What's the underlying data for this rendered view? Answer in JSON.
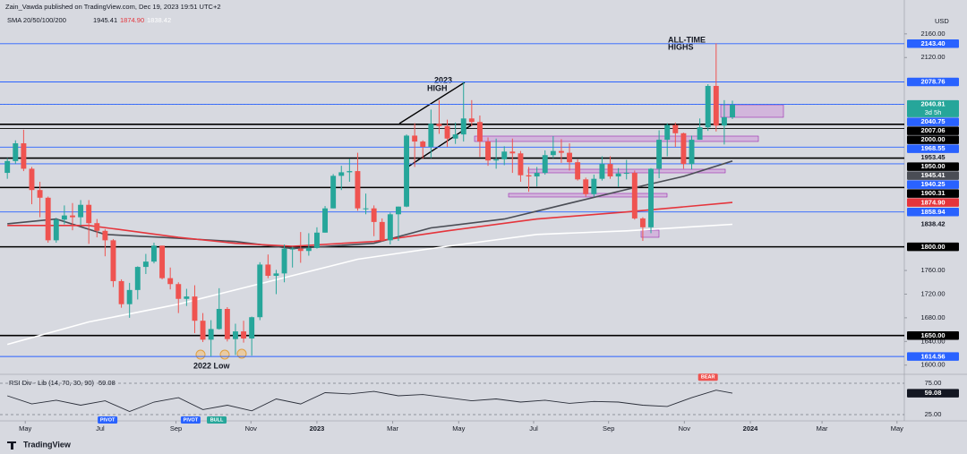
{
  "header": {
    "publisher": "Zain_Vawda published on TradingView.com, Dec 19, 2023 19:51 UTC+2",
    "legend": "SMA 20/50/100/200",
    "sma_values": [
      "1945.41",
      "1874.90",
      "1838.42"
    ],
    "currency": "USD",
    "brand": "TradingView"
  },
  "annotations": {
    "ath": [
      "ALL-TIME",
      "HIGHS"
    ],
    "high2023": [
      "2023",
      "HIGH"
    ],
    "low2022": "2022 Low"
  },
  "chart_data": {
    "type": "candlestick",
    "ohlc": [
      [
        1925,
        1950,
        1915,
        1945
      ],
      [
        1945,
        1980,
        1940,
        1975
      ],
      [
        1975,
        1998,
        1928,
        1932
      ],
      [
        1932,
        1935,
        1872,
        1896
      ],
      [
        1896,
        1910,
        1850,
        1883
      ],
      [
        1883,
        1885,
        1807,
        1811
      ],
      [
        1811,
        1849,
        1807,
        1846
      ],
      [
        1846,
        1870,
        1838,
        1853
      ],
      [
        1853,
        1874,
        1828,
        1850
      ],
      [
        1850,
        1879,
        1836,
        1871
      ],
      [
        1871,
        1879,
        1805,
        1840
      ],
      [
        1840,
        1847,
        1816,
        1827
      ],
      [
        1827,
        1830,
        1784,
        1811
      ],
      [
        1811,
        1813,
        1732,
        1742
      ],
      [
        1742,
        1745,
        1697,
        1703
      ],
      [
        1703,
        1739,
        1680,
        1727
      ],
      [
        1727,
        1767,
        1711,
        1766
      ],
      [
        1766,
        1788,
        1754,
        1775
      ],
      [
        1775,
        1807,
        1772,
        1802
      ],
      [
        1802,
        1802,
        1745,
        1747
      ],
      [
        1747,
        1765,
        1728,
        1737
      ],
      [
        1737,
        1740,
        1688,
        1712
      ],
      [
        1712,
        1729,
        1700,
        1716
      ],
      [
        1716,
        1735,
        1654,
        1675
      ],
      [
        1675,
        1688,
        1639,
        1643
      ],
      [
        1643,
        1676,
        1615,
        1661
      ],
      [
        1661,
        1730,
        1660,
        1695
      ],
      [
        1695,
        1698,
        1640,
        1644
      ],
      [
        1644,
        1670,
        1617,
        1657
      ],
      [
        1657,
        1675,
        1638,
        1645
      ],
      [
        1645,
        1682,
        1616,
        1681
      ],
      [
        1681,
        1774,
        1676,
        1770
      ],
      [
        1770,
        1787,
        1747,
        1751
      ],
      [
        1751,
        1761,
        1720,
        1755
      ],
      [
        1755,
        1804,
        1740,
        1797
      ],
      [
        1797,
        1800,
        1765,
        1797
      ],
      [
        1797,
        1825,
        1773,
        1793
      ],
      [
        1793,
        1823,
        1785,
        1798
      ],
      [
        1798,
        1833,
        1797,
        1824
      ],
      [
        1824,
        1869,
        1824,
        1865
      ],
      [
        1865,
        1923,
        1865,
        1920
      ],
      [
        1920,
        1937,
        1896,
        1926
      ],
      [
        1926,
        1949,
        1910,
        1928
      ],
      [
        1928,
        1959,
        1861,
        1865
      ],
      [
        1865,
        1890,
        1855,
        1865
      ],
      [
        1865,
        1870,
        1818,
        1842
      ],
      [
        1842,
        1848,
        1809,
        1811
      ],
      [
        1811,
        1858,
        1804,
        1855
      ],
      [
        1855,
        1868,
        1810,
        1868
      ],
      [
        1868,
        1990,
        1867,
        1988
      ],
      [
        1988,
        2009,
        1935,
        1978
      ],
      [
        1978,
        1980,
        1949,
        1969
      ],
      [
        1969,
        2032,
        1950,
        2008
      ],
      [
        2008,
        2048,
        1991,
        2004
      ],
      [
        2004,
        2015,
        1969,
        1983
      ],
      [
        1983,
        2010,
        1974,
        1990
      ],
      [
        1990,
        2079,
        1978,
        2017
      ],
      [
        2017,
        2048,
        2004,
        2011
      ],
      [
        2011,
        2022,
        1952,
        1978
      ],
      [
        1978,
        1985,
        1937,
        1946
      ],
      [
        1946,
        1983,
        1932,
        1948
      ],
      [
        1948,
        1970,
        1938,
        1961
      ],
      [
        1961,
        1983,
        1925,
        1958
      ],
      [
        1958,
        1962,
        1910,
        1921
      ],
      [
        1921,
        1935,
        1893,
        1919
      ],
      [
        1919,
        1935,
        1902,
        1925
      ],
      [
        1925,
        1963,
        1922,
        1955
      ],
      [
        1955,
        1987,
        1950,
        1962
      ],
      [
        1962,
        1982,
        1942,
        1959
      ],
      [
        1959,
        1975,
        1929,
        1943
      ],
      [
        1943,
        1948,
        1912,
        1914
      ],
      [
        1914,
        1917,
        1885,
        1889
      ],
      [
        1889,
        1922,
        1885,
        1915
      ],
      [
        1915,
        1953,
        1912,
        1940
      ],
      [
        1940,
        1953,
        1915,
        1919
      ],
      [
        1919,
        1933,
        1901,
        1924
      ],
      [
        1924,
        1947,
        1914,
        1925
      ],
      [
        1925,
        1929,
        1846,
        1848
      ],
      [
        1848,
        1850,
        1810,
        1833
      ],
      [
        1833,
        1933,
        1823,
        1932
      ],
      [
        1932,
        1997,
        1916,
        1981
      ],
      [
        1981,
        2009,
        1953,
        2006
      ],
      [
        2006,
        2010,
        1969,
        1992
      ],
      [
        1992,
        1993,
        1932,
        1940
      ],
      [
        1940,
        1988,
        1931,
        1981
      ],
      [
        1981,
        2017,
        1981,
        2002
      ],
      [
        2002,
        2075,
        1996,
        2072
      ],
      [
        2072,
        2144,
        1995,
        2005
      ],
      [
        2005,
        2048,
        1973,
        2019
      ],
      [
        2019,
        2047,
        2016,
        2040
      ]
    ],
    "up_color": "#26a69a",
    "down_color": "#ef5350",
    "xlim": [
      -0.9,
      110.1
    ],
    "ylim": [
      1589,
      2187
    ],
    "yticks": [
      {
        "value": 2160,
        "label": "2160.00"
      },
      {
        "value": 2120,
        "label": "2120.00"
      },
      {
        "value": 1760,
        "label": "1760.00"
      },
      {
        "value": 1720,
        "label": "1720.00"
      },
      {
        "value": 1680,
        "label": "1680.00"
      },
      {
        "value": 1640,
        "label": "1640.00"
      },
      {
        "value": 1600,
        "label": "1600.00"
      }
    ],
    "xticks": [
      {
        "value": 2.2,
        "label": "May"
      },
      {
        "value": 11.4,
        "label": "Jul"
      },
      {
        "value": 20.7,
        "label": "Sep"
      },
      {
        "value": 29.9,
        "label": "Nov"
      },
      {
        "value": 38,
        "label": "2023"
      },
      {
        "value": 47.3,
        "label": "Mar"
      },
      {
        "value": 55.4,
        "label": "May"
      },
      {
        "value": 64.6,
        "label": "Jul"
      },
      {
        "value": 73.8,
        "label": "Sep"
      },
      {
        "value": 83.1,
        "label": "Nov"
      },
      {
        "value": 91.2,
        "label": "2024"
      },
      {
        "value": 100,
        "label": "Mar"
      },
      {
        "value": 109.2,
        "label": "May"
      }
    ],
    "sma": [
      {
        "color": "#4a4d55",
        "x": [
          0,
          6,
          12,
          19,
          28,
          35,
          45,
          52,
          61,
          70,
          76,
          83,
          89
        ],
        "values": [
          1839,
          1847,
          1821,
          1816,
          1809,
          1797,
          1806,
          1832,
          1847,
          1877,
          1897,
          1919,
          1945
        ]
      },
      {
        "color": "#e5353c",
        "x": [
          0,
          10,
          21,
          28,
          35,
          45,
          54,
          65,
          76,
          89
        ],
        "values": [
          1836,
          1836,
          1816,
          1806,
          1801,
          1809,
          1827,
          1847,
          1859,
          1875
        ]
      },
      {
        "color": "#ffffff",
        "x": [
          0,
          10,
          21,
          32,
          43,
          54,
          65,
          76,
          89
        ],
        "values": [
          1635,
          1673,
          1703,
          1741,
          1779,
          1801,
          1821,
          1827,
          1838
        ]
      }
    ],
    "levels": [
      {
        "value": 2143.4,
        "label": "2143.40",
        "color": "#2962ff",
        "style": "solid"
      },
      {
        "value": 2078.76,
        "label": "2078.76",
        "color": "#2962ff",
        "style": "solid"
      },
      {
        "value": 2040.81,
        "label": "2040.81",
        "color": "#26a69a",
        "style": "dotted",
        "countdown": "3d 5h"
      },
      {
        "value": 2040.75,
        "label": "2040.75",
        "color": "#2962ff",
        "style": "solid"
      },
      {
        "value": 2007.06,
        "label": "2007.06",
        "color": "#000000",
        "style": "thick"
      },
      {
        "value": 2000.0,
        "label": "2000.00",
        "color": "#000000",
        "style": "solid"
      },
      {
        "value": 1968.55,
        "label": "1968.55",
        "color": "#2962ff",
        "style": "solid"
      },
      {
        "value": 1953.45,
        "label": "1953.45",
        "color": null,
        "style": "none"
      },
      {
        "value": 1950.0,
        "label": "1950.00",
        "color": "#000000",
        "style": "thick"
      },
      {
        "value": 1945.41,
        "label": "1945.41",
        "color": "#4a4d55",
        "style": "none"
      },
      {
        "value": 1940.25,
        "label": "1940.25",
        "color": "#2962ff",
        "style": "solid"
      },
      {
        "value": 1900.31,
        "label": "1900.31",
        "color": "#000000",
        "style": "thick"
      },
      {
        "value": 1874.9,
        "label": "1874.90",
        "color": "#e5353c",
        "style": "none"
      },
      {
        "value": 1858.94,
        "label": "1858.94",
        "color": "#2962ff",
        "style": "solid"
      },
      {
        "value": 1838.42,
        "label": "1838.42",
        "color": null,
        "style": "none"
      },
      {
        "value": 1800.0,
        "label": "1800.00",
        "color": "#000000",
        "style": "thick"
      },
      {
        "value": 1650.0,
        "label": "1650.00",
        "color": "#000000",
        "style": "thick"
      },
      {
        "value": 1614.56,
        "label": "1614.56",
        "color": "#2962ff",
        "style": "solid"
      }
    ],
    "rsi": {
      "title": "RSI Div - Lib (14, 70, 30, 90)",
      "last": {
        "value": 59.08,
        "label": "59.08"
      },
      "ylim": [
        15,
        89.3
      ],
      "yticks": [
        {
          "value": 75,
          "label": "75.00"
        },
        {
          "value": 25,
          "label": "25.00"
        }
      ],
      "x": [
        0,
        3,
        6,
        9,
        12,
        15,
        18,
        21,
        24,
        27,
        30,
        33,
        36,
        39,
        42,
        45,
        48,
        51,
        54,
        57,
        60,
        63,
        66,
        69,
        72,
        75,
        78,
        81,
        84,
        87,
        89
      ],
      "values": [
        55,
        42,
        48,
        40,
        47,
        30,
        45,
        52,
        33,
        40,
        31,
        50,
        42,
        60,
        58,
        62,
        55,
        57,
        52,
        47,
        50,
        45,
        48,
        43,
        46,
        45,
        40,
        38,
        52,
        64,
        59.08
      ],
      "color": "#2a2e39",
      "signals": [
        {
          "label": "PIVOT",
          "x": 12.3,
          "value": 25,
          "color": "#2962ff"
        },
        {
          "label": "PIVOT",
          "x": 22.5,
          "value": 25,
          "color": "#2962ff"
        },
        {
          "label": "BULL",
          "x": 25.7,
          "value": 25,
          "color": "#26a69a"
        },
        {
          "label": "BEAR",
          "x": 86,
          "value": 79,
          "color": "#ef5350"
        }
      ]
    }
  }
}
